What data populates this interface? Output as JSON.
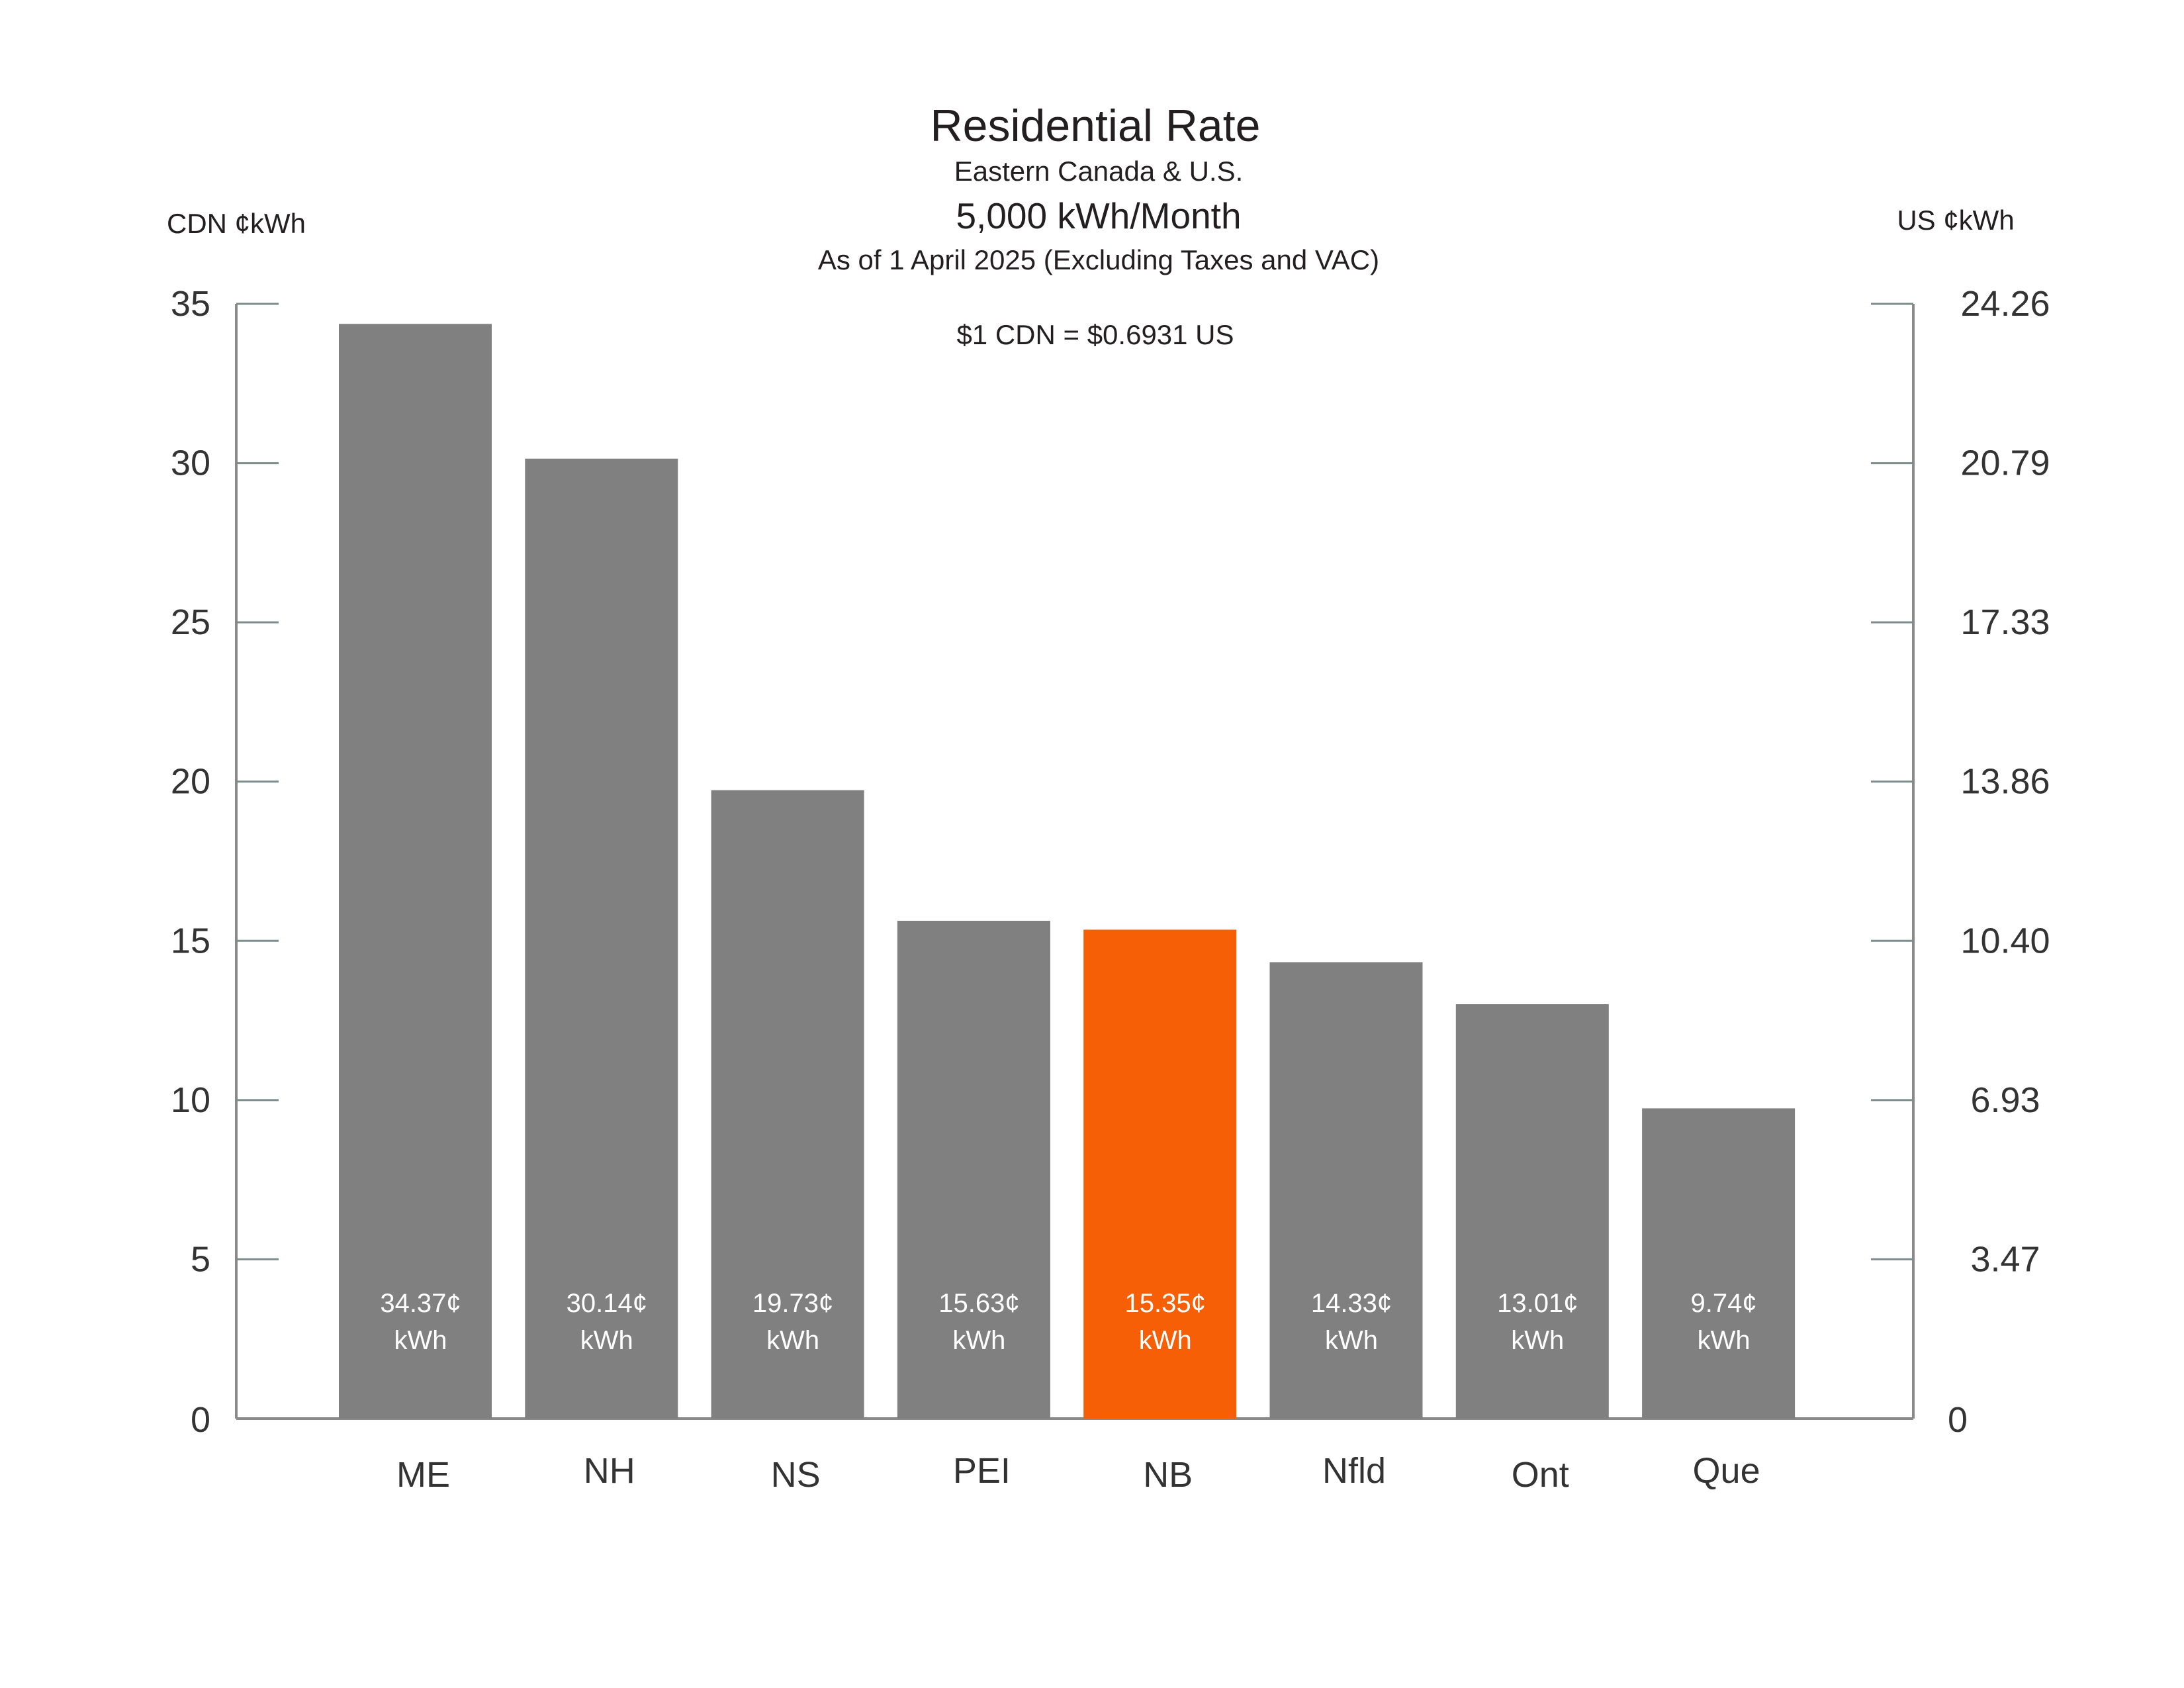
{
  "chart_data": {
    "type": "bar",
    "title": "Residential Rate",
    "subtitle": "Eastern Canada & U.S.",
    "subtitle2": "5,000 kWh/Month",
    "subtitle3": "As of 1 April 2025 (Excluding Taxes and VAC)",
    "annotation": "$1 CDN = $0.6931 US",
    "ylabel_left": "CDN ¢kWh",
    "ylabel_right": "US ¢kWh",
    "ylim": [
      0,
      35
    ],
    "left_ticks": [
      "0",
      "5",
      "10",
      "15",
      "20",
      "25",
      "30",
      "35"
    ],
    "right_ticks": [
      "0",
      "3.47",
      "6.93",
      "10.40",
      "13.86",
      "17.33",
      "20.79",
      "24.26"
    ],
    "categories": [
      "ME",
      "NH",
      "NS",
      "PEI",
      "NB",
      "Nfld",
      "Ont",
      "Que"
    ],
    "values": [
      34.37,
      30.14,
      19.73,
      15.63,
      15.35,
      14.33,
      13.01,
      9.74
    ],
    "value_labels": [
      "34.37¢",
      "30.14¢",
      "19.73¢",
      "15.63¢",
      "15.35¢",
      "14.33¢",
      "13.01¢",
      "9.74¢"
    ],
    "value_unit": "kWh",
    "highlight": "NB",
    "colors": {
      "bar": "#808080",
      "highlight": "#f75f07",
      "axis": "#8a8a8a"
    },
    "grid": false,
    "legend": "none"
  }
}
